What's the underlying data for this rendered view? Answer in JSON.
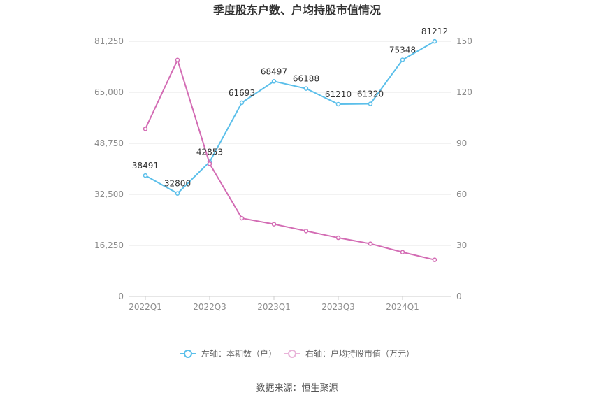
{
  "chart_data": {
    "type": "line",
    "title": "季度股东户数、户均持股市值情况",
    "categories": [
      "2022Q1",
      "2022Q2",
      "2022Q3",
      "2022Q4",
      "2023Q1",
      "2023Q2",
      "2023Q3",
      "2023Q4",
      "2024Q1",
      "2024Q2"
    ],
    "x_tick_labels": [
      "2022Q1",
      "2022Q3",
      "2023Q1",
      "2023Q3",
      "2024Q1"
    ],
    "y_left": {
      "ticks": [
        "0",
        "16,250",
        "32,500",
        "48,750",
        "65,000",
        "81,250"
      ],
      "min": 0,
      "max": 81250
    },
    "y_right": {
      "ticks": [
        "0",
        "30",
        "60",
        "90",
        "120",
        "150"
      ],
      "min": 0,
      "max": 150
    },
    "series": [
      {
        "name": "左轴：本期数（户）",
        "axis": "left",
        "color": "#5bbfea",
        "values": [
          38491,
          32800,
          42853,
          61693,
          68497,
          66188,
          61210,
          61320,
          75348,
          81212
        ],
        "labels": [
          "38491",
          "32800",
          "42853",
          "61693",
          "68497",
          "66188",
          "61210",
          "61320",
          "75348",
          "81212"
        ]
      },
      {
        "name": "右轴：户均持股市值（万元）",
        "axis": "right",
        "color": "#d36cb4",
        "values": [
          98.5,
          139,
          78,
          46,
          42.5,
          38.5,
          34.5,
          31,
          26,
          21.5
        ]
      }
    ],
    "grid": true,
    "legend_position": "bottom"
  },
  "source": "数据来源：恒生聚源"
}
